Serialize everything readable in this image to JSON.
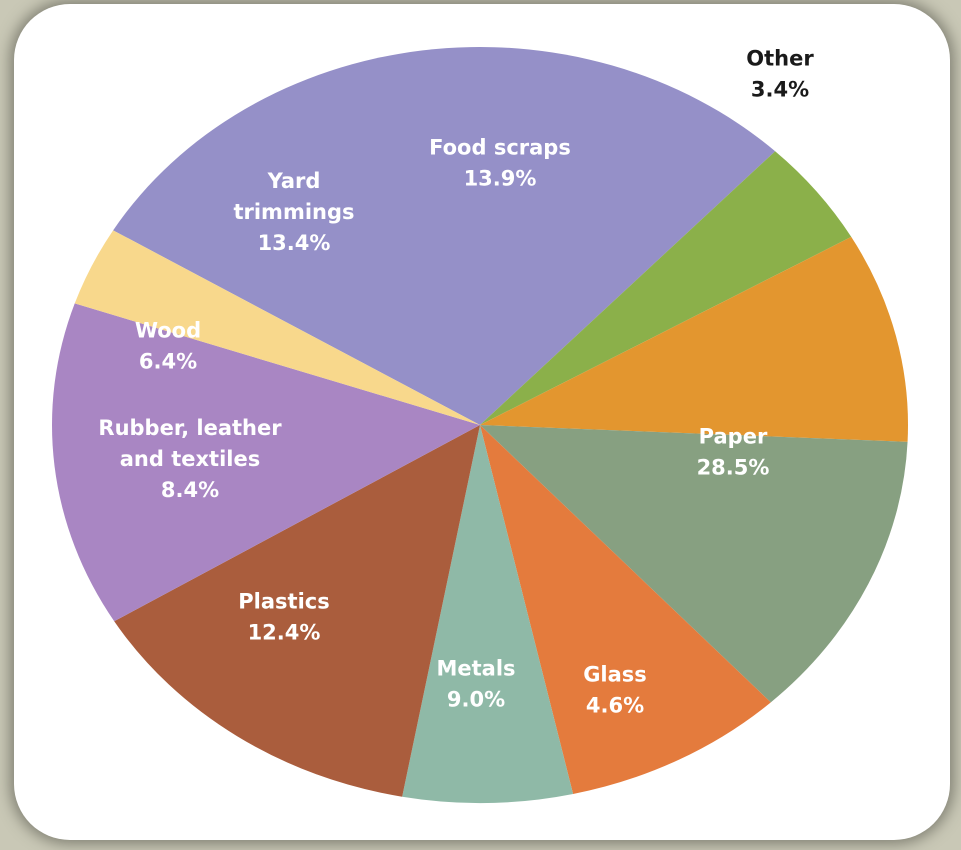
{
  "chart_data": {
    "type": "pie",
    "title": "",
    "slices": [
      {
        "label": [
          "Paper"
        ],
        "value": 28.5,
        "value_label": "28.5%",
        "color": "#9590c8"
      },
      {
        "label": [
          "Glass"
        ],
        "value": 4.6,
        "value_label": "4.6%",
        "color": "#8bb04a"
      },
      {
        "label": [
          "Metals"
        ],
        "value": 9.0,
        "value_label": "9.0%",
        "color": "#e3962f"
      },
      {
        "label": [
          "Plastics"
        ],
        "value": 12.4,
        "value_label": "12.4%",
        "color": "#87a081"
      },
      {
        "label": [
          "Rubber, leather",
          "and textiles"
        ],
        "value": 8.4,
        "value_label": "8.4%",
        "color": "#e47b3d"
      },
      {
        "label": [
          "Wood"
        ],
        "value": 6.4,
        "value_label": "6.4%",
        "color": "#8fb9a7"
      },
      {
        "label": [
          "Yard",
          "trimmings"
        ],
        "value": 13.4,
        "value_label": "13.4%",
        "color": "#aa5d3d"
      },
      {
        "label": [
          "Food scraps"
        ],
        "value": 13.9,
        "value_label": "13.9%",
        "color": "#a986c3"
      },
      {
        "label": [
          "Other"
        ],
        "value": 3.4,
        "value_label": "3.4%",
        "color": "#f8d88c"
      }
    ]
  }
}
